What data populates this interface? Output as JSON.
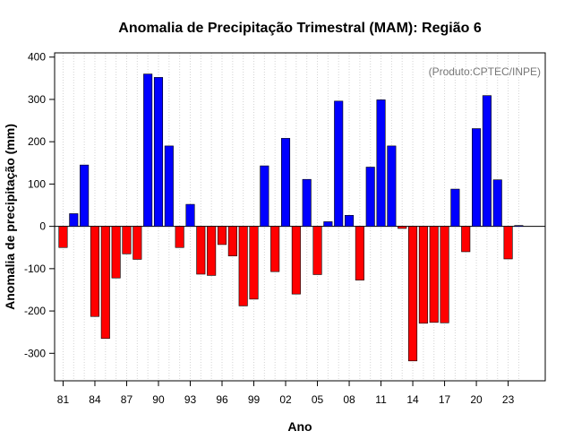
{
  "chart_data": {
    "type": "bar",
    "title": "Anomalia de Precipitação Trimestral (MAM): Região 6",
    "xlabel": "Ano",
    "ylabel": "Anomalia de precipitação (mm)",
    "annotation": "(Produto:CPTEC/INPE)",
    "ylim": [
      -365,
      410
    ],
    "xlim": [
      0.2,
      46.5
    ],
    "yticks": [
      -300,
      -200,
      -100,
      0,
      100,
      200,
      300,
      400
    ],
    "ytick_labels": [
      "-300",
      "-200",
      "-100",
      "0",
      "100",
      "200",
      "300",
      "400"
    ],
    "xticks": [
      1,
      4,
      7,
      10,
      13,
      16,
      19,
      22,
      25,
      28,
      31,
      34,
      37,
      40,
      43
    ],
    "xtick_labels": [
      "81",
      "84",
      "87",
      "90",
      "93",
      "96",
      "99",
      "02",
      "05",
      "08",
      "11",
      "14",
      "17",
      "20",
      "23"
    ],
    "grid": true,
    "positive_color": "#0000ff",
    "negative_color": "#ff0000",
    "years": [
      1981,
      1982,
      1983,
      1984,
      1985,
      1986,
      1987,
      1988,
      1989,
      1990,
      1991,
      1992,
      1993,
      1994,
      1995,
      1996,
      1997,
      1998,
      1999,
      2000,
      2001,
      2002,
      2003,
      2004,
      2005,
      2006,
      2007,
      2008,
      2009,
      2010,
      2011,
      2012,
      2013,
      2014,
      2015,
      2016,
      2017,
      2018,
      2019,
      2020,
      2021,
      2022,
      2023,
      2024
    ],
    "values": [
      -50,
      30,
      145,
      -213,
      -265,
      -122,
      -65,
      -78,
      360,
      352,
      190,
      -50,
      52,
      -113,
      -116,
      -43,
      -70,
      -188,
      -172,
      143,
      -107,
      208,
      -160,
      111,
      -114,
      11,
      296,
      26,
      -127,
      140,
      299,
      190,
      -5,
      -318,
      -229,
      -227,
      -228,
      88,
      -60,
      231,
      309,
      110,
      -77,
      2
    ]
  }
}
